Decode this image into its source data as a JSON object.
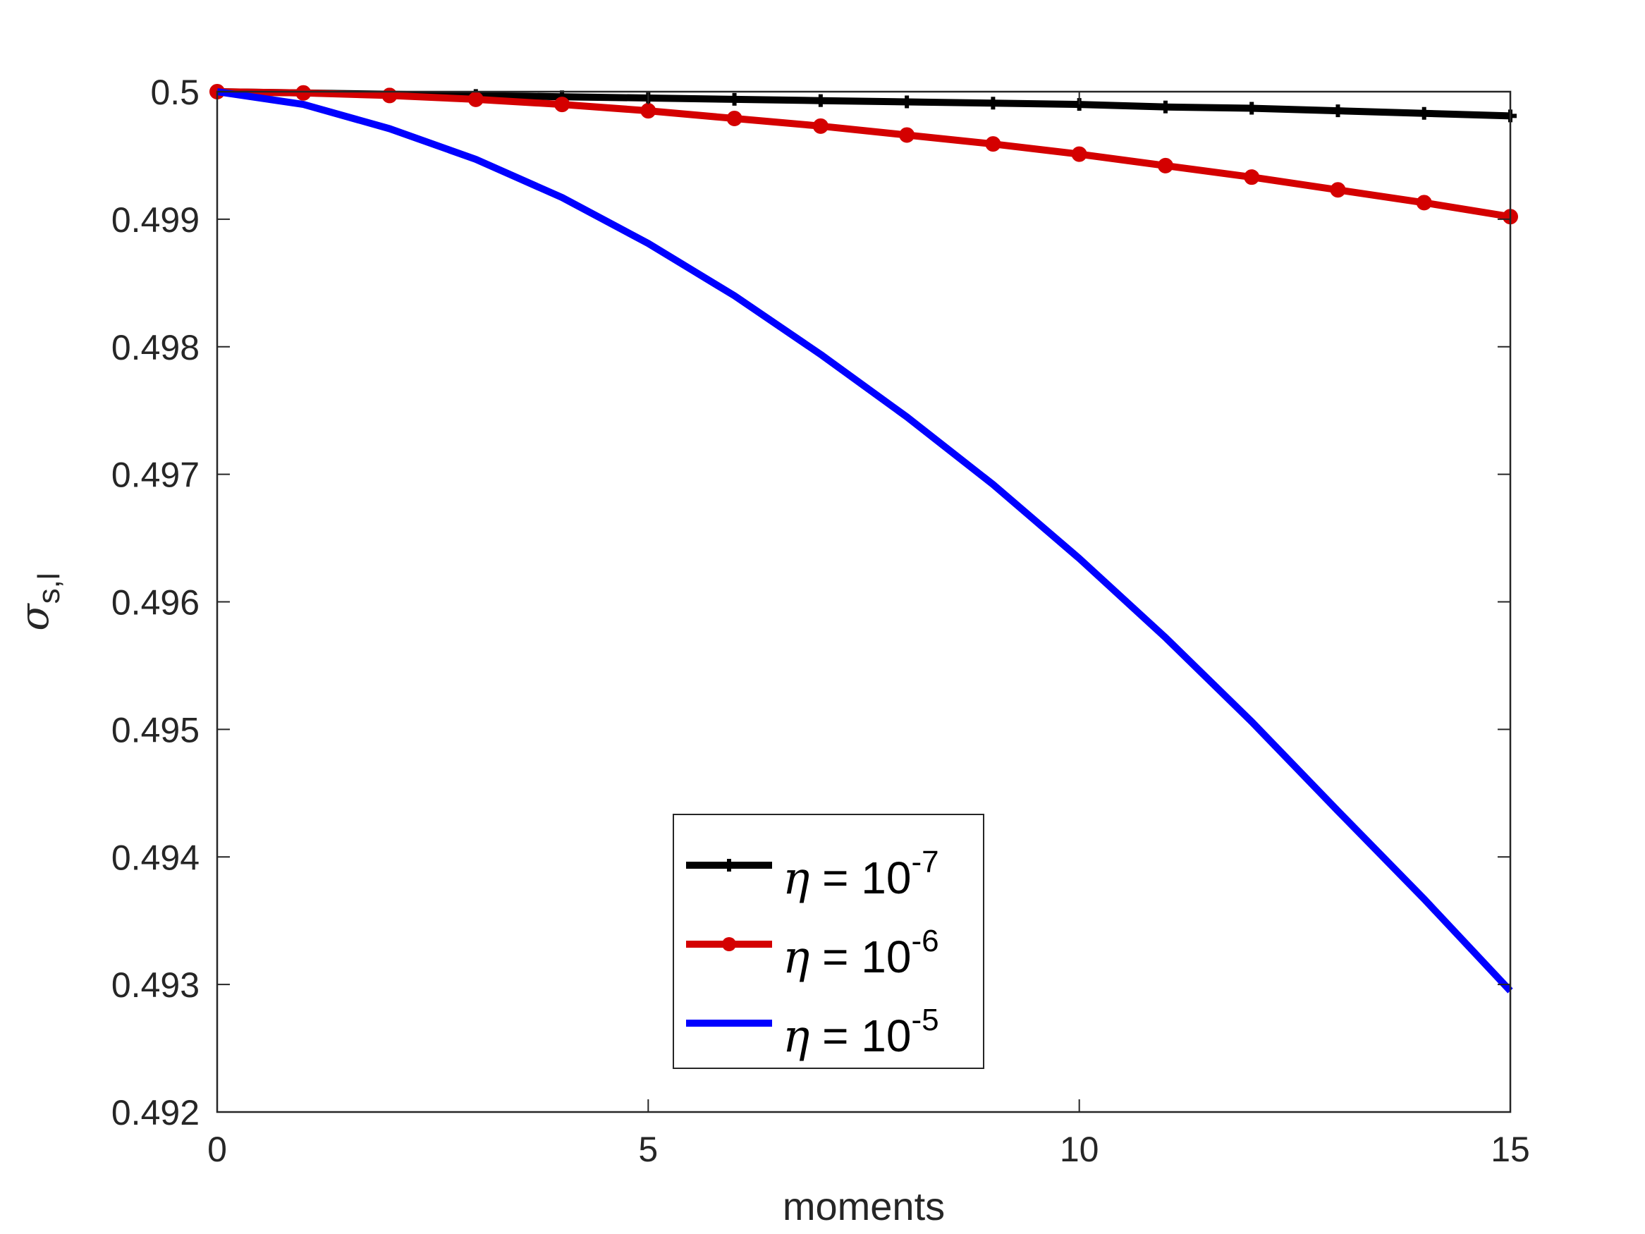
{
  "chart_data": {
    "type": "line",
    "xlabel": "moments",
    "ylabel": {
      "symbol": "σ",
      "subscript": "s,l"
    },
    "xlim": [
      0,
      15
    ],
    "ylim": [
      0.492,
      0.5
    ],
    "xticks": [
      "0",
      "5",
      "10",
      "15"
    ],
    "yticks": [
      "0.492",
      "0.493",
      "0.494",
      "0.495",
      "0.496",
      "0.497",
      "0.498",
      "0.499",
      "0.5"
    ],
    "x": [
      0,
      1,
      2,
      3,
      4,
      5,
      6,
      7,
      8,
      9,
      10,
      11,
      12,
      13,
      14,
      15
    ],
    "series": [
      {
        "name": "η = 10^-7",
        "legend": {
          "symbol": "η",
          "text": " = 10",
          "exponent": "-7"
        },
        "color": "#000000",
        "marker": "plus",
        "values": [
          0.5,
          0.49999,
          0.49998,
          0.49997,
          0.49996,
          0.49995,
          0.49994,
          0.49993,
          0.49992,
          0.49991,
          0.4999,
          0.49988,
          0.49987,
          0.49985,
          0.49983,
          0.49981
        ]
      },
      {
        "name": "η = 10^-6",
        "legend": {
          "symbol": "η",
          "text": " = 10",
          "exponent": "-6"
        },
        "color": "#d40000",
        "marker": "dot",
        "values": [
          0.5,
          0.49999,
          0.49997,
          0.49994,
          0.4999,
          0.49985,
          0.49979,
          0.49973,
          0.49966,
          0.49959,
          0.49951,
          0.49942,
          0.49933,
          0.49923,
          0.49913,
          0.49902
        ]
      },
      {
        "name": "η = 10^-5",
        "legend": {
          "symbol": "η",
          "text": " = 10",
          "exponent": "-5"
        },
        "color": "#0000ff",
        "marker": "none",
        "values": [
          0.5,
          0.4999,
          0.49971,
          0.49947,
          0.49917,
          0.49881,
          0.4984,
          0.49794,
          0.49745,
          0.49692,
          0.49634,
          0.49572,
          0.49506,
          0.49436,
          0.49367,
          0.49295
        ]
      }
    ],
    "grid": false,
    "legend_position": "bottom-center"
  }
}
